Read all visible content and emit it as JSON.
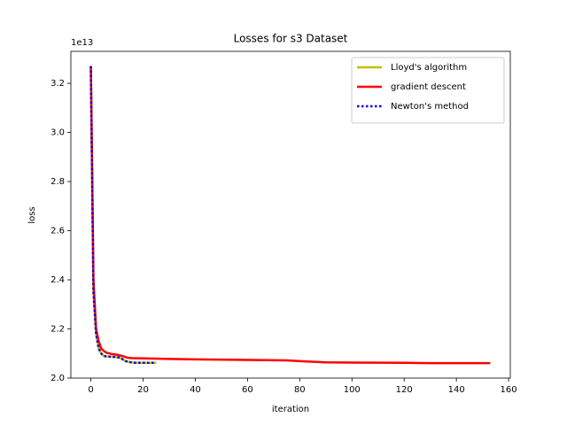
{
  "chart_data": {
    "type": "line",
    "title": "Losses for s3 Dataset",
    "x_label": "iteration",
    "y_label": "loss",
    "y_offset": "1e13",
    "series": [
      {
        "name": "Lloyd's algorithm",
        "color": "#bfbf00",
        "style": "solid",
        "x": [
          0,
          1,
          2,
          3,
          4,
          5,
          6,
          8,
          10,
          11,
          12,
          13,
          14,
          15,
          16,
          18,
          20,
          22,
          25
        ],
        "values": [
          3.27,
          2.35,
          2.18,
          2.12,
          2.1,
          2.09,
          2.088,
          2.087,
          2.085,
          2.083,
          2.078,
          2.07,
          2.067,
          2.065,
          2.063,
          2.062,
          2.062,
          2.062,
          2.062
        ]
      },
      {
        "name": "gradient descent",
        "color": "#ff0000",
        "style": "solid",
        "x": [
          0,
          1,
          2,
          3,
          4,
          5,
          6,
          8,
          10,
          12,
          14,
          16,
          20,
          30,
          40,
          60,
          75,
          80,
          90,
          100,
          120,
          130,
          153
        ],
        "values": [
          3.27,
          2.4,
          2.2,
          2.15,
          2.12,
          2.11,
          2.103,
          2.098,
          2.095,
          2.09,
          2.083,
          2.081,
          2.08,
          2.078,
          2.076,
          2.074,
          2.072,
          2.069,
          2.064,
          2.063,
          2.062,
          2.061,
          2.061
        ]
      },
      {
        "name": "Newton's method",
        "color": "#0000ff",
        "style": "dotted",
        "x": [
          0,
          1,
          2,
          3,
          4,
          5,
          6,
          8,
          10,
          11,
          12,
          13,
          14,
          15,
          16,
          18,
          20,
          22,
          25
        ],
        "values": [
          3.27,
          2.35,
          2.18,
          2.12,
          2.1,
          2.09,
          2.088,
          2.087,
          2.085,
          2.083,
          2.078,
          2.07,
          2.067,
          2.065,
          2.063,
          2.062,
          2.062,
          2.062,
          2.062
        ]
      }
    ],
    "xlim": [
      -7.65,
      160.65
    ],
    "ylim": [
      2.0,
      3.33
    ],
    "xticks": [
      0,
      20,
      40,
      60,
      80,
      100,
      120,
      140,
      160
    ],
    "yticks": [
      {
        "value": 2,
        "label": "2.0"
      },
      2.2,
      2.4,
      2.6,
      2.8,
      {
        "value": 3,
        "label": "3.0"
      },
      3.2
    ],
    "grid": false,
    "legend": "upper right"
  }
}
